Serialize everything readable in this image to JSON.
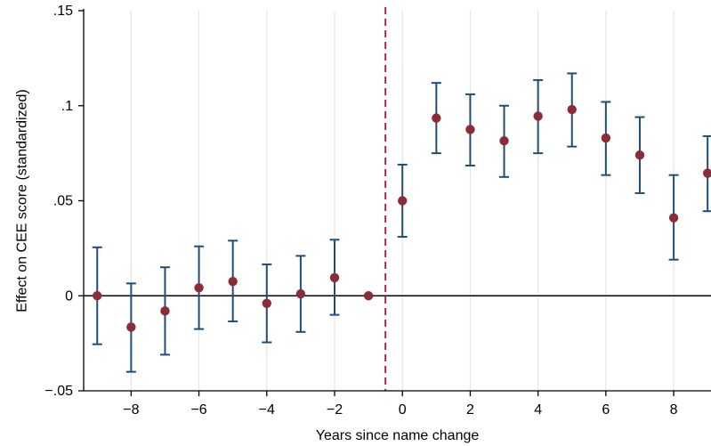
{
  "chart_data": {
    "type": "scatter",
    "subtype": "event-study coefficient plot with 95% confidence intervals",
    "title": "",
    "xlabel": "Years since name change",
    "ylabel": "Effect on CEE score (standardized)",
    "xlim": [
      -9.4,
      9.1
    ],
    "ylim": [
      -0.05,
      0.15
    ],
    "x_ticks": [
      -8,
      -6,
      -4,
      -2,
      0,
      2,
      4,
      6,
      8
    ],
    "x_tick_labels": [
      "−8",
      "−6",
      "−4",
      "−2",
      "0",
      "2",
      "4",
      "6",
      "8"
    ],
    "y_ticks": [
      -0.05,
      0,
      0.05,
      0.1,
      0.15
    ],
    "y_tick_labels": [
      "−.05",
      "0",
      ".05",
      ".1",
      ".15"
    ],
    "vertical_gridlines": true,
    "horizontal_gridlines": false,
    "reference_line_y": 0,
    "event_line_x": -0.5,
    "legend": "none",
    "colors": {
      "point": "#8b2c37",
      "error_bar": "#1f4e79",
      "event_line": "#a3285a",
      "zero_line": "#000000",
      "grid": "#e6e6e6"
    },
    "points": [
      {
        "x": -9,
        "y": 0.0,
        "ci_low": -0.0255,
        "ci_high": 0.0255
      },
      {
        "x": -8,
        "y": -0.0165,
        "ci_low": -0.04,
        "ci_high": 0.0065
      },
      {
        "x": -7,
        "y": -0.008,
        "ci_low": -0.031,
        "ci_high": 0.015
      },
      {
        "x": -6,
        "y": 0.0042,
        "ci_low": -0.0175,
        "ci_high": 0.026
      },
      {
        "x": -5,
        "y": 0.0075,
        "ci_low": -0.0135,
        "ci_high": 0.029
      },
      {
        "x": -4,
        "y": -0.004,
        "ci_low": -0.0245,
        "ci_high": 0.0165
      },
      {
        "x": -3,
        "y": 0.001,
        "ci_low": -0.019,
        "ci_high": 0.021
      },
      {
        "x": -2,
        "y": 0.0095,
        "ci_low": -0.01,
        "ci_high": 0.0295
      },
      {
        "x": -1,
        "y": 0.0,
        "ci_low": null,
        "ci_high": null
      },
      {
        "x": 0,
        "y": 0.05,
        "ci_low": 0.031,
        "ci_high": 0.069
      },
      {
        "x": 1,
        "y": 0.0935,
        "ci_low": 0.075,
        "ci_high": 0.112
      },
      {
        "x": 2,
        "y": 0.0875,
        "ci_low": 0.0685,
        "ci_high": 0.106
      },
      {
        "x": 3,
        "y": 0.0815,
        "ci_low": 0.0625,
        "ci_high": 0.1
      },
      {
        "x": 4,
        "y": 0.0945,
        "ci_low": 0.075,
        "ci_high": 0.1135
      },
      {
        "x": 5,
        "y": 0.098,
        "ci_low": 0.0785,
        "ci_high": 0.117
      },
      {
        "x": 6,
        "y": 0.083,
        "ci_low": 0.0635,
        "ci_high": 0.102
      },
      {
        "x": 7,
        "y": 0.074,
        "ci_low": 0.054,
        "ci_high": 0.094
      },
      {
        "x": 8,
        "y": 0.041,
        "ci_low": 0.019,
        "ci_high": 0.0635
      },
      {
        "x": 9,
        "y": 0.0645,
        "ci_low": 0.0445,
        "ci_high": 0.084
      }
    ]
  }
}
